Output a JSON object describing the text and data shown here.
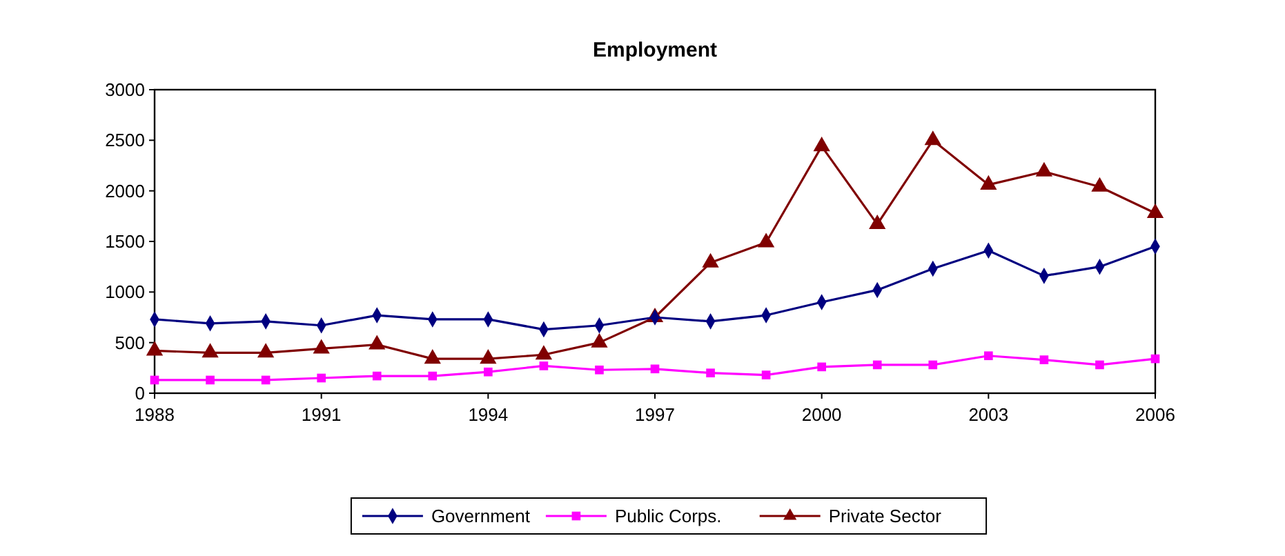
{
  "chart_data": {
    "type": "line",
    "title": "Employment",
    "x": [
      1988,
      1989,
      1990,
      1991,
      1992,
      1993,
      1994,
      1995,
      1996,
      1997,
      1998,
      1999,
      2000,
      2001,
      2002,
      2003,
      2004,
      2005,
      2006
    ],
    "xlim": [
      1988,
      2006
    ],
    "xticks": [
      1988,
      1991,
      1994,
      1997,
      2000,
      2003,
      2006
    ],
    "ylim": [
      0,
      3000
    ],
    "yticks": [
      0,
      500,
      1000,
      1500,
      2000,
      2500,
      3000
    ],
    "series": [
      {
        "name": "Government",
        "color": "#000080",
        "marker": "diamond",
        "values": [
          730,
          690,
          710,
          670,
          770,
          730,
          730,
          630,
          670,
          750,
          710,
          770,
          900,
          1020,
          1230,
          1410,
          1160,
          1250,
          1450
        ]
      },
      {
        "name": "Public Corps.",
        "color": "#ff00ff",
        "marker": "square",
        "values": [
          130,
          130,
          130,
          150,
          170,
          170,
          210,
          270,
          230,
          240,
          200,
          180,
          260,
          280,
          280,
          370,
          330,
          280,
          340
        ]
      },
      {
        "name": "Private Sector",
        "color": "#800000",
        "marker": "triangle",
        "values": [
          420,
          400,
          400,
          440,
          480,
          340,
          340,
          380,
          500,
          750,
          1290,
          1490,
          2440,
          1670,
          2500,
          2060,
          2190,
          2040,
          1780
        ]
      }
    ],
    "legend": "bottom",
    "grid": false,
    "line_style": "solid"
  }
}
